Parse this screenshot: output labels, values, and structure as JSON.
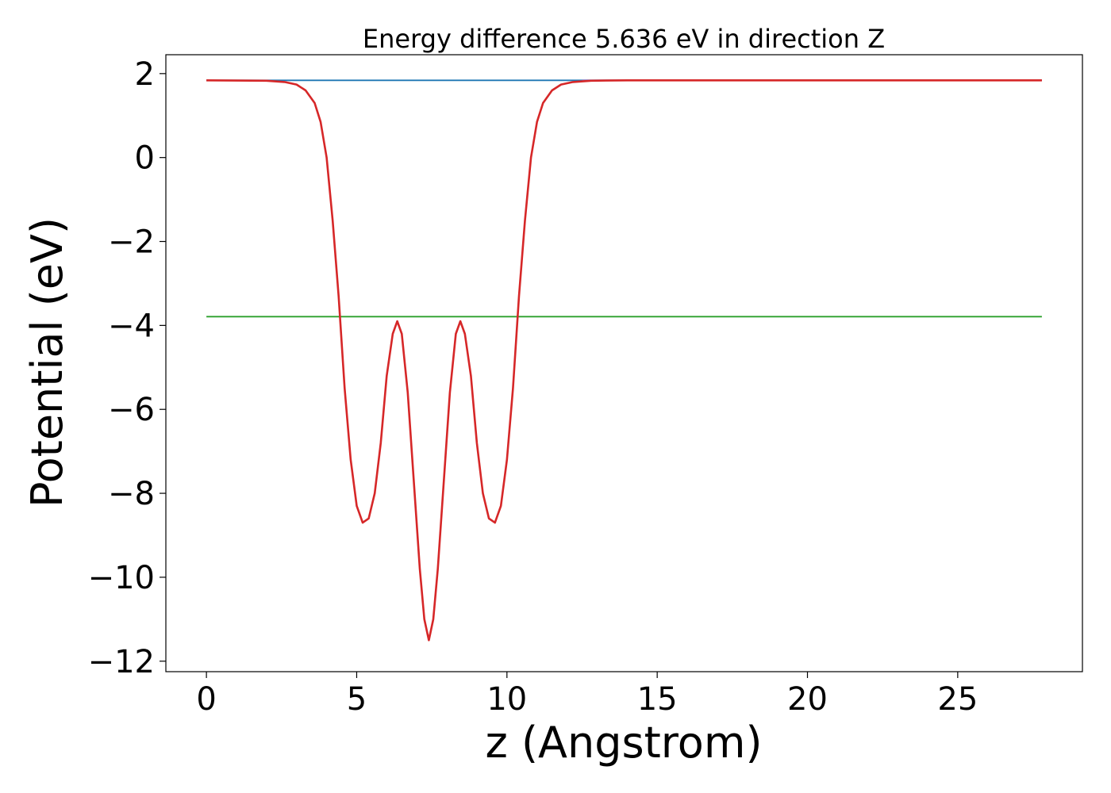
{
  "chart_data": {
    "type": "line",
    "title": "Energy difference 5.636 eV in direction Z",
    "xlabel": "z (Angstrom)",
    "ylabel": "Potential (eV)",
    "xlim": [
      -1.35,
      29.15
    ],
    "ylim": [
      -12.25,
      2.45
    ],
    "xticks": [
      0,
      5,
      10,
      15,
      20,
      25
    ],
    "yticks": [
      2,
      0,
      -2,
      -4,
      -6,
      -8,
      -10,
      -12
    ],
    "xtick_labels": [
      "0",
      "5",
      "10",
      "15",
      "20",
      "25"
    ],
    "ytick_labels": [
      "2",
      "0",
      "−2",
      "−4",
      "−6",
      "−8",
      "−10",
      "−12"
    ],
    "grid": false,
    "legend": "none",
    "series": [
      {
        "color": "#1f77b4",
        "x": [
          0,
          27.8
        ],
        "y": [
          1.84,
          1.84
        ]
      },
      {
        "color": "#2ca02c",
        "x": [
          0,
          27.8
        ],
        "y": [
          -3.79,
          -3.79
        ]
      },
      {
        "color": "#8467bd",
        "x": [
          12.5,
          27.8
        ],
        "y": [
          1.84,
          1.84
        ]
      },
      {
        "color": "#d62728",
        "x": [
          0,
          2.0,
          2.6,
          3.0,
          3.3,
          3.6,
          3.8,
          4.0,
          4.2,
          4.4,
          4.6,
          4.8,
          5.0,
          5.2,
          5.4,
          5.6,
          5.8,
          6.0,
          6.2,
          6.35,
          6.5,
          6.7,
          6.9,
          7.1,
          7.25,
          7.4,
          7.55,
          7.7,
          7.9,
          8.1,
          8.3,
          8.45,
          8.6,
          8.8,
          9.0,
          9.2,
          9.4,
          9.6,
          9.8,
          10.0,
          10.2,
          10.4,
          10.6,
          10.8,
          11.0,
          11.2,
          11.5,
          11.8,
          12.2,
          12.8,
          14.0,
          27.8
        ],
        "y": [
          1.84,
          1.83,
          1.8,
          1.74,
          1.6,
          1.3,
          0.85,
          0.0,
          -1.5,
          -3.3,
          -5.5,
          -7.2,
          -8.3,
          -8.7,
          -8.6,
          -8.0,
          -6.8,
          -5.2,
          -4.2,
          -3.9,
          -4.2,
          -5.6,
          -7.7,
          -9.8,
          -11.0,
          -11.5,
          -11.0,
          -9.8,
          -7.7,
          -5.6,
          -4.2,
          -3.9,
          -4.2,
          -5.2,
          -6.8,
          -8.0,
          -8.6,
          -8.7,
          -8.3,
          -7.2,
          -5.5,
          -3.3,
          -1.5,
          0.0,
          0.85,
          1.3,
          1.6,
          1.74,
          1.8,
          1.83,
          1.84,
          1.84
        ]
      }
    ]
  }
}
